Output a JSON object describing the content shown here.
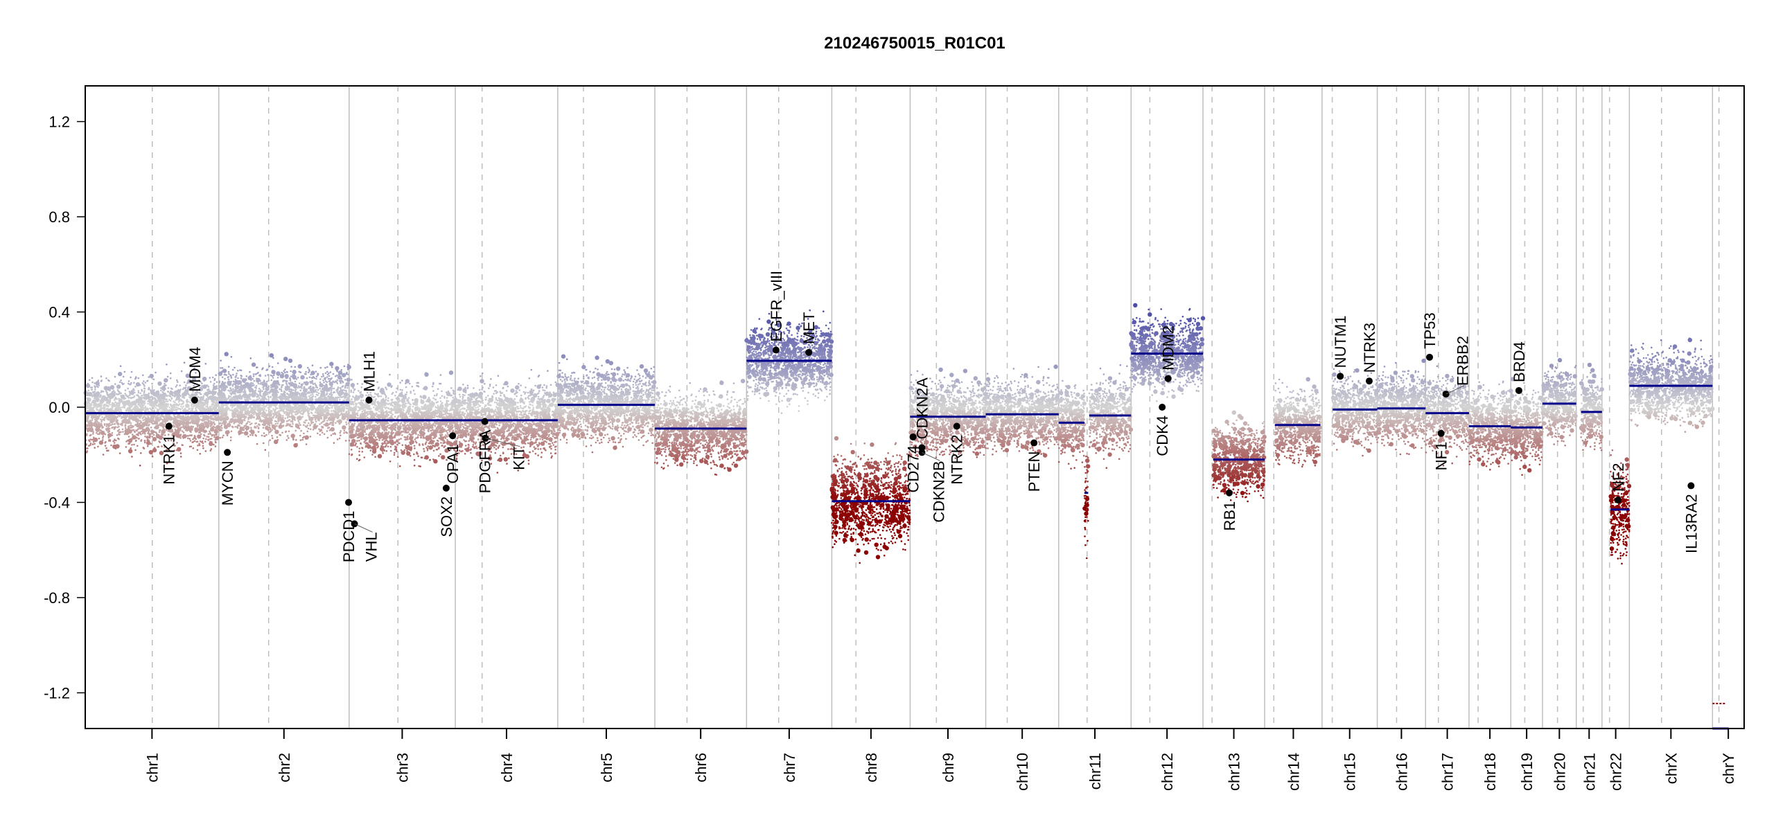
{
  "chart_data": {
    "type": "scatter",
    "title": "210246750015_R01C01",
    "xlabel": "",
    "ylabel": "",
    "ylim": [
      -1.35,
      1.35
    ],
    "yticks": [
      "-1.2",
      "-0.8",
      "-0.4",
      "0.0",
      "0.4",
      "0.8",
      "1.2"
    ],
    "ytick_values": [
      -1.2,
      -0.8,
      -0.4,
      0.0,
      0.4,
      0.8,
      1.2
    ],
    "grid": false,
    "colors": {
      "gain": "#4b4ba8",
      "neutral": "#d3d3d3",
      "loss": "#8b0000",
      "segment": "#00008b",
      "gene_point": "#000000",
      "boundary": "#bebebe",
      "centromere": "#bebebe"
    },
    "chromosomes": [
      {
        "name": "chr1",
        "length_mb": 249,
        "centromere_mb": 125
      },
      {
        "name": "chr2",
        "length_mb": 243,
        "centromere_mb": 93
      },
      {
        "name": "chr3",
        "length_mb": 198,
        "centromere_mb": 91
      },
      {
        "name": "chr4",
        "length_mb": 191,
        "centromere_mb": 50
      },
      {
        "name": "chr5",
        "length_mb": 181,
        "centromere_mb": 48
      },
      {
        "name": "chr6",
        "length_mb": 171,
        "centromere_mb": 60
      },
      {
        "name": "chr7",
        "length_mb": 159,
        "centromere_mb": 60
      },
      {
        "name": "chr8",
        "length_mb": 146,
        "centromere_mb": 45
      },
      {
        "name": "chr9",
        "length_mb": 141,
        "centromere_mb": 49
      },
      {
        "name": "chr10",
        "length_mb": 136,
        "centromere_mb": 40
      },
      {
        "name": "chr11",
        "length_mb": 135,
        "centromere_mb": 53
      },
      {
        "name": "chr12",
        "length_mb": 134,
        "centromere_mb": 35
      },
      {
        "name": "chr13",
        "length_mb": 115,
        "centromere_mb": 17
      },
      {
        "name": "chr14",
        "length_mb": 107,
        "centromere_mb": 17
      },
      {
        "name": "chr15",
        "length_mb": 103,
        "centromere_mb": 19
      },
      {
        "name": "chr16",
        "length_mb": 90,
        "centromere_mb": 36
      },
      {
        "name": "chr17",
        "length_mb": 81,
        "centromere_mb": 24
      },
      {
        "name": "chr18",
        "length_mb": 78,
        "centromere_mb": 17
      },
      {
        "name": "chr19",
        "length_mb": 59,
        "centromere_mb": 26
      },
      {
        "name": "chr20",
        "length_mb": 63,
        "centromere_mb": 28
      },
      {
        "name": "chr21",
        "length_mb": 48,
        "centromere_mb": 13
      },
      {
        "name": "chr22",
        "length_mb": 51,
        "centromere_mb": 14
      },
      {
        "name": "chrX",
        "length_mb": 155,
        "centromere_mb": 60
      },
      {
        "name": "chrY",
        "length_mb": 59,
        "centromere_mb": 12
      }
    ],
    "segments": [
      {
        "chr": "chr1",
        "start_mb": 0,
        "end_mb": 249,
        "value": -0.025
      },
      {
        "chr": "chr2",
        "start_mb": 0,
        "end_mb": 243,
        "value": 0.02
      },
      {
        "chr": "chr3",
        "start_mb": 0,
        "end_mb": 198,
        "value": -0.055
      },
      {
        "chr": "chr4",
        "start_mb": 0,
        "end_mb": 191,
        "value": -0.055
      },
      {
        "chr": "chr5",
        "start_mb": 0,
        "end_mb": 181,
        "value": 0.01
      },
      {
        "chr": "chr6",
        "start_mb": 0,
        "end_mb": 171,
        "value": -0.09
      },
      {
        "chr": "chr7",
        "start_mb": 0,
        "end_mb": 159,
        "value": 0.195
      },
      {
        "chr": "chr8",
        "start_mb": 0,
        "end_mb": 146,
        "value": -0.395
      },
      {
        "chr": "chr9",
        "start_mb": 0,
        "end_mb": 141,
        "value": -0.04
      },
      {
        "chr": "chr10",
        "start_mb": 0,
        "end_mb": 136,
        "value": -0.03
      },
      {
        "chr": "chr11",
        "start_mb": 0,
        "end_mb": 48,
        "value": -0.065
      },
      {
        "chr": "chr11",
        "start_mb": 48,
        "end_mb": 55,
        "value": -0.36
      },
      {
        "chr": "chr11",
        "start_mb": 57,
        "end_mb": 135,
        "value": -0.035
      },
      {
        "chr": "chr12",
        "start_mb": 0,
        "end_mb": 134,
        "value": 0.225
      },
      {
        "chr": "chr13",
        "start_mb": 19,
        "end_mb": 115,
        "value": -0.22
      },
      {
        "chr": "chr14",
        "start_mb": 19,
        "end_mb": 104,
        "value": -0.075
      },
      {
        "chr": "chr15",
        "start_mb": 20,
        "end_mb": 103,
        "value": -0.01
      },
      {
        "chr": "chr16",
        "start_mb": 0,
        "end_mb": 90,
        "value": -0.005
      },
      {
        "chr": "chr17",
        "start_mb": 0,
        "end_mb": 81,
        "value": -0.025
      },
      {
        "chr": "chr18",
        "start_mb": 0,
        "end_mb": 78,
        "value": -0.08
      },
      {
        "chr": "chr19",
        "start_mb": 0,
        "end_mb": 59,
        "value": -0.085
      },
      {
        "chr": "chr20",
        "start_mb": 0,
        "end_mb": 63,
        "value": 0.015
      },
      {
        "chr": "chr21",
        "start_mb": 9,
        "end_mb": 48,
        "value": -0.02
      },
      {
        "chr": "chr22",
        "start_mb": 16,
        "end_mb": 51,
        "value": -0.43
      },
      {
        "chr": "chrX",
        "start_mb": 0,
        "end_mb": 155,
        "value": 0.09
      },
      {
        "chr": "chrY",
        "start_mb": 0,
        "end_mb": 30,
        "value": -1.35
      }
    ],
    "genes": [
      {
        "name": "NTRK1",
        "chr": "chr1",
        "pos_mb": 156,
        "value": -0.08
      },
      {
        "name": "MDM4",
        "chr": "chr1",
        "pos_mb": 204,
        "value": 0.03
      },
      {
        "name": "MYCN",
        "chr": "chr2",
        "pos_mb": 16,
        "value": -0.19
      },
      {
        "name": "PDCD1",
        "chr": "chr2",
        "pos_mb": 242,
        "value": -0.4
      },
      {
        "name": "VHL",
        "chr": "chr3",
        "pos_mb": 10,
        "value": -0.49
      },
      {
        "name": "MLH1",
        "chr": "chr3",
        "pos_mb": 37,
        "value": 0.03
      },
      {
        "name": "SOX2",
        "chr": "chr3",
        "pos_mb": 181,
        "value": -0.34
      },
      {
        "name": "OPA1",
        "chr": "chr3",
        "pos_mb": 193,
        "value": -0.12
      },
      {
        "name": "PDGFRA",
        "chr": "chr4",
        "pos_mb": 55,
        "value": -0.06
      },
      {
        "name": "KIT",
        "chr": "chr4",
        "pos_mb": 56,
        "value": -0.13
      },
      {
        "name": "EGFR_vIII",
        "chr": "chr7",
        "pos_mb": 55,
        "value": 0.24
      },
      {
        "name": "MET",
        "chr": "chr7",
        "pos_mb": 116,
        "value": 0.23
      },
      {
        "name": "CD274",
        "chr": "chr9",
        "pos_mb": 5.5,
        "value": -0.125
      },
      {
        "name": "CDKN2A",
        "chr": "chr9",
        "pos_mb": 21.9,
        "value": -0.17
      },
      {
        "name": "CDKN2B",
        "chr": "chr9",
        "pos_mb": 22.0,
        "value": -0.19
      },
      {
        "name": "NTRK2",
        "chr": "chr9",
        "pos_mb": 87,
        "value": -0.08
      },
      {
        "name": "PTEN",
        "chr": "chr10",
        "pos_mb": 90,
        "value": -0.15
      },
      {
        "name": "CDK4",
        "chr": "chr12",
        "pos_mb": 58,
        "value": 0.0
      },
      {
        "name": "MDM2",
        "chr": "chr12",
        "pos_mb": 69,
        "value": 0.12
      },
      {
        "name": "RB1",
        "chr": "chr13",
        "pos_mb": 49,
        "value": -0.36
      },
      {
        "name": "NUTM1",
        "chr": "chr15",
        "pos_mb": 34,
        "value": 0.13
      },
      {
        "name": "NTRK3",
        "chr": "chr15",
        "pos_mb": 88,
        "value": 0.11
      },
      {
        "name": "TP53",
        "chr": "chr17",
        "pos_mb": 7.5,
        "value": 0.21
      },
      {
        "name": "NF1",
        "chr": "chr17",
        "pos_mb": 29,
        "value": -0.11
      },
      {
        "name": "ERBB2",
        "chr": "chr17",
        "pos_mb": 38,
        "value": 0.055
      },
      {
        "name": "BRD4",
        "chr": "chr19",
        "pos_mb": 15,
        "value": 0.07
      },
      {
        "name": "NF2",
        "chr": "chr22",
        "pos_mb": 30,
        "value": -0.39
      },
      {
        "name": "IL13RA2",
        "chr": "chrX",
        "pos_mb": 115,
        "value": -0.33
      }
    ]
  }
}
